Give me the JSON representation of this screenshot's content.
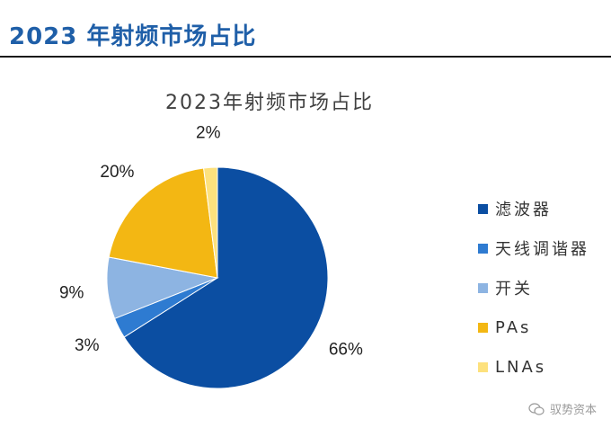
{
  "header": {
    "title": "2023 年射频市场占比"
  },
  "watermark": {
    "text": "驭势资本",
    "icon": "wechat-icon"
  },
  "chart_data": {
    "type": "pie",
    "title": "2023年射频市场占比",
    "slices": [
      {
        "label": "滤波器",
        "value": 66,
        "display": "66%",
        "color": "#0b4ea2"
      },
      {
        "label": "天线调谐器",
        "value": 3,
        "display": "3%",
        "color": "#2e7bd1"
      },
      {
        "label": "开关",
        "value": 9,
        "display": "9%",
        "color": "#8db4e2"
      },
      {
        "label": "PAs",
        "value": 20,
        "display": "20%",
        "color": "#f3b713"
      },
      {
        "label": "LNAs",
        "value": 2,
        "display": "2%",
        "color": "#fde17d"
      }
    ],
    "legend_position": "right"
  }
}
